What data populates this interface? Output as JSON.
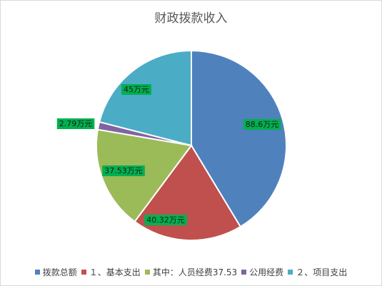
{
  "chart_data": {
    "type": "pie",
    "title": "财政拨款收入",
    "categories": [
      "拨款总额",
      "１、基本支出",
      "其中：人员经费37.53",
      "公用经费",
      "２、项目支出"
    ],
    "values": [
      88.6,
      40.32,
      37.53,
      2.79,
      45
    ],
    "data_labels": [
      "88.6万元",
      "40.32万元",
      "37.53万元",
      "2.79万元",
      "45万元"
    ],
    "colors": [
      "#4f81bd",
      "#c0504d",
      "#9bbb59",
      "#8064a2",
      "#4bacc6"
    ],
    "label_background": "#00b050",
    "start_angle_deg": 0,
    "direction": "clockwise",
    "legend_position": "bottom"
  }
}
